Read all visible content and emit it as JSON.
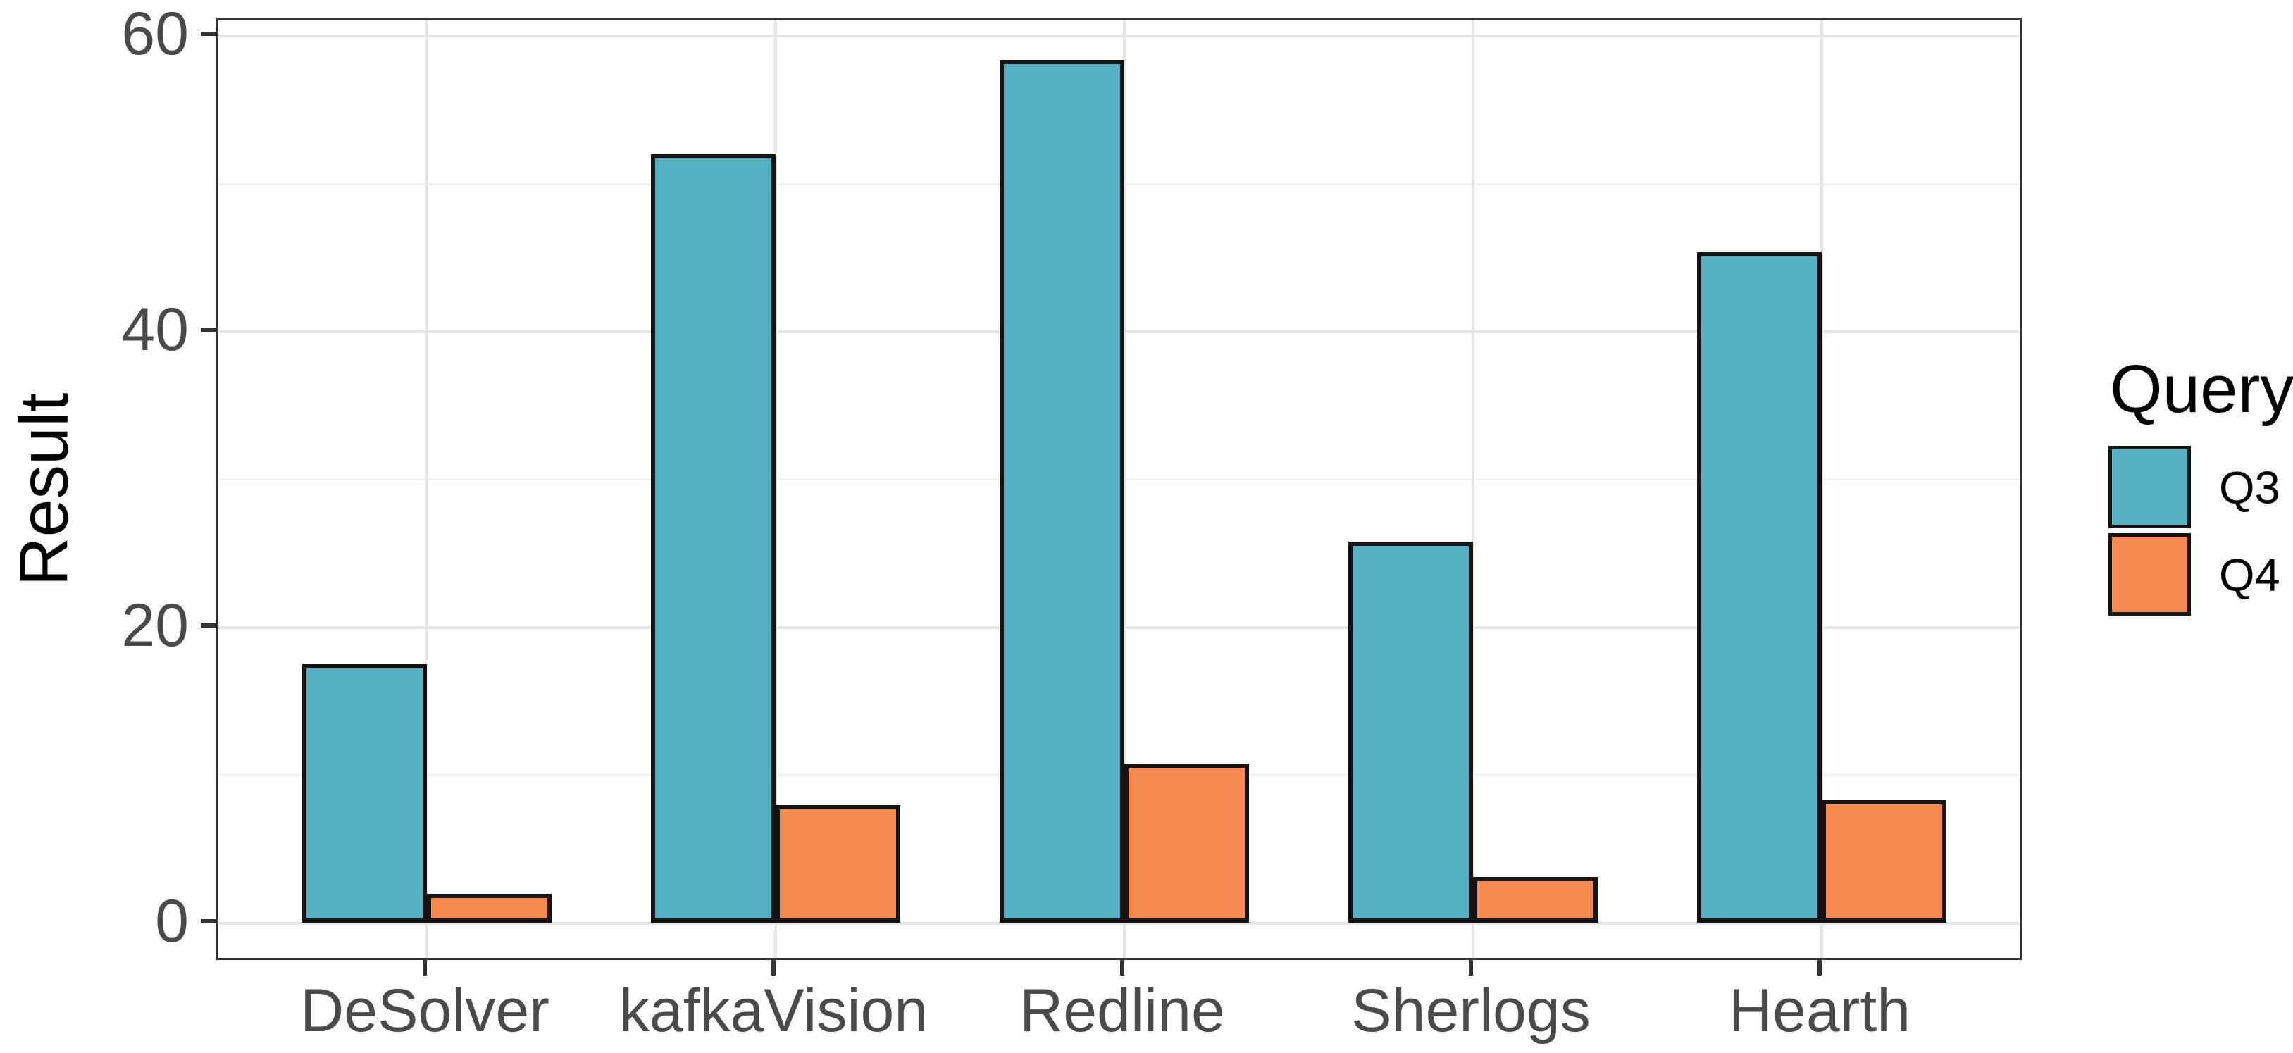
{
  "figure": {
    "background": "#ffffff"
  },
  "axes": {
    "y_title": "Result",
    "y_tick_labels": [
      "0",
      "20",
      "40",
      "60"
    ],
    "x_tick_labels": [
      "DeSolver",
      "kafkaVision",
      "Redline",
      "Sherlogs",
      "Hearth"
    ]
  },
  "legend": {
    "title": "Query",
    "entries": [
      {
        "label": "Q3",
        "color": "#55B1C1"
      },
      {
        "label": "Q4",
        "color": "#F78A50"
      }
    ]
  },
  "style_colors": {
    "bar_outline": "#141414",
    "panel_border": "#333333",
    "grid_major": "#e6e6e6",
    "grid_minor": "#f2f2f2",
    "tick_text": "#4a4a4a"
  },
  "chart_data": {
    "type": "bar",
    "title": "",
    "categories": [
      "DeSolver",
      "kafkaVision",
      "Redline",
      "Sherlogs",
      "Hearth"
    ],
    "series": [
      {
        "name": "Q3",
        "color": "#55B1C1",
        "values": [
          17.5,
          52.0,
          58.4,
          25.8,
          45.4
        ]
      },
      {
        "name": "Q4",
        "color": "#F78A50",
        "values": [
          2.0,
          8.0,
          10.8,
          3.1,
          8.3
        ]
      }
    ],
    "xlabel": "",
    "ylabel": "Result",
    "ylim": [
      -2.6,
      61.2
    ],
    "yticks": [
      0,
      20,
      40,
      60
    ],
    "yticks_minor": [
      10,
      30,
      50
    ],
    "grid": true,
    "legend_title": "Query",
    "legend_position": "right",
    "bar_group_layout": "dodge"
  }
}
